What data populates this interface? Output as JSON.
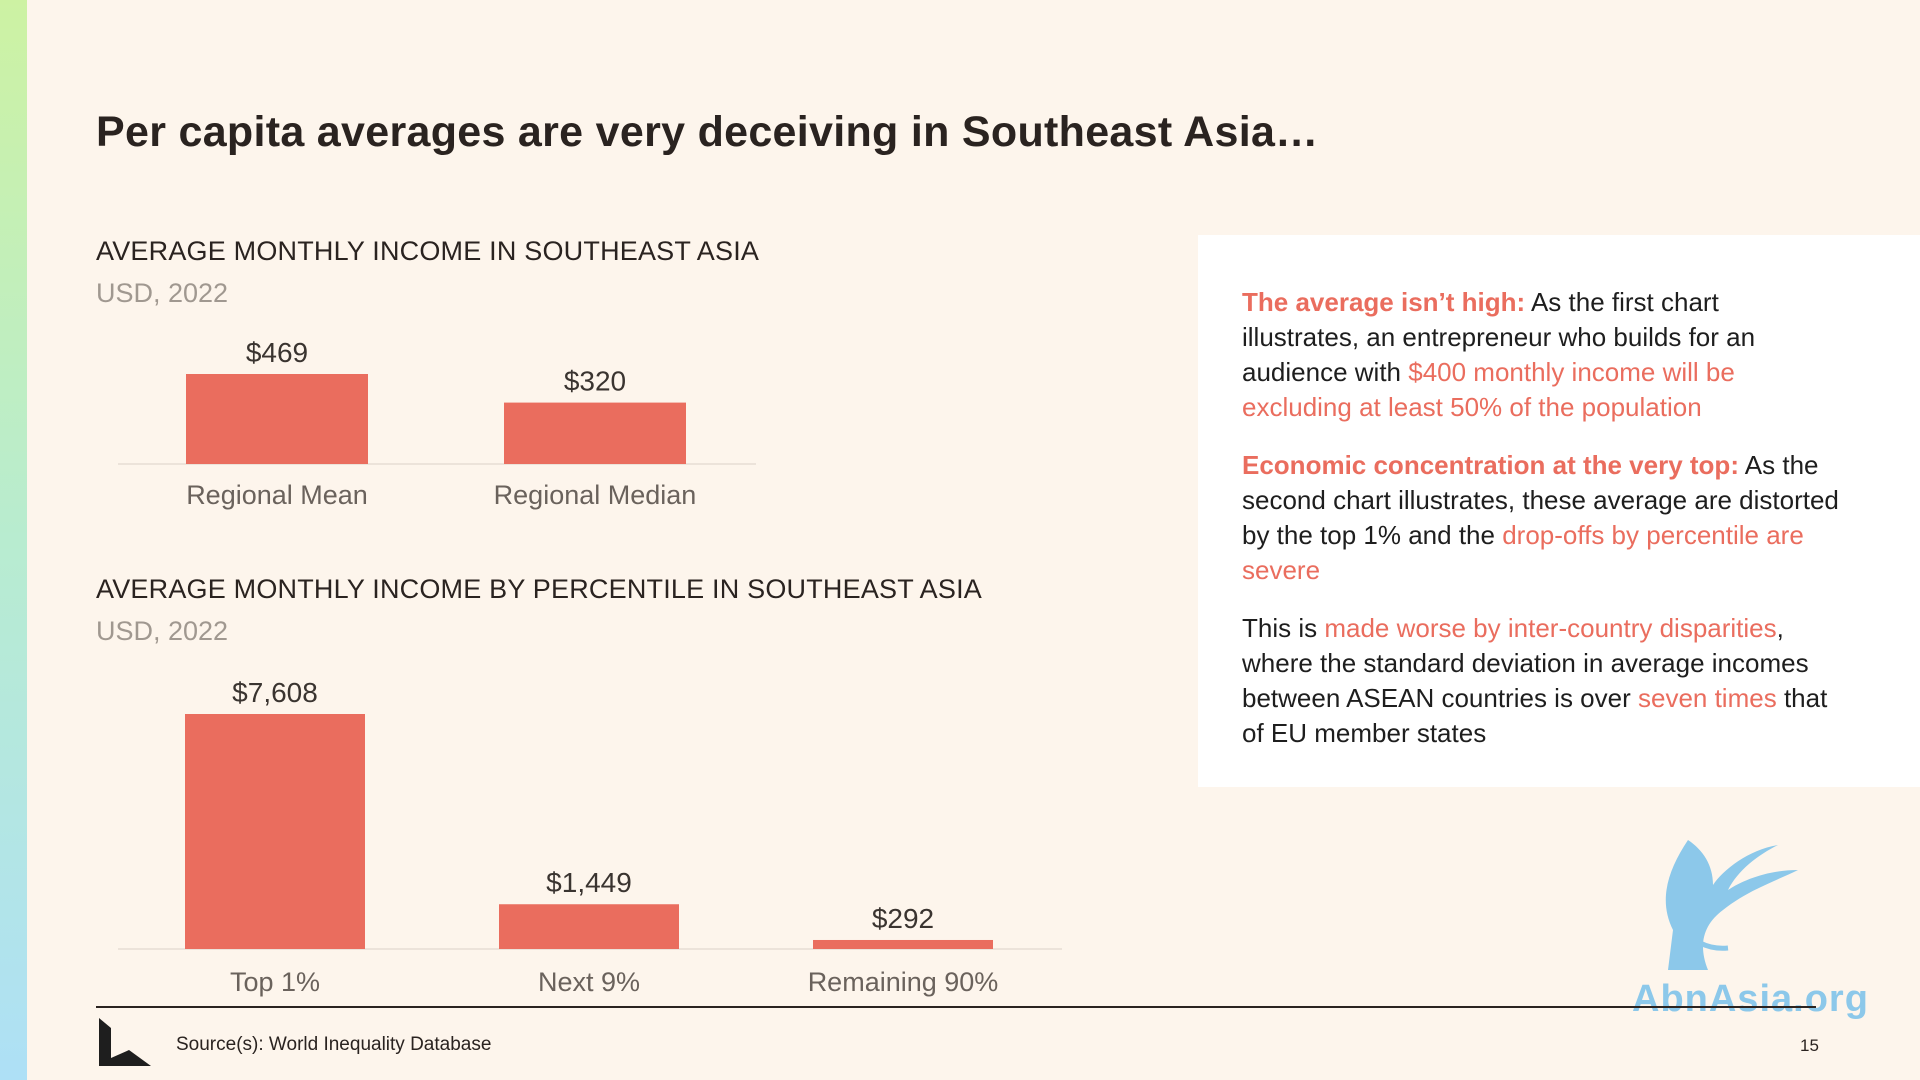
{
  "slide": {
    "title": "Per capita averages are very deceiving in Southeast Asia…",
    "page_number": "15",
    "source": "Source(s): World Inequality Database"
  },
  "colors": {
    "bar": "#ea6d5e",
    "highlight": "#ea6d5e",
    "background": "#fdf5ec"
  },
  "chart_data": [
    {
      "type": "bar",
      "title": "AVERAGE MONTHLY INCOME IN SOUTHEAST ASIA",
      "subtitle": "USD, 2022",
      "categories": [
        "Regional Mean",
        "Regional Median"
      ],
      "values": [
        469,
        320
      ],
      "value_labels": [
        "$469",
        "$320"
      ],
      "ylim": [
        0,
        469
      ],
      "grid": false
    },
    {
      "type": "bar",
      "title": "AVERAGE MONTHLY INCOME BY PERCENTILE IN SOUTHEAST ASIA",
      "subtitle": "USD, 2022",
      "categories": [
        "Top 1%",
        "Next 9%",
        "Remaining 90%"
      ],
      "values": [
        7608,
        1449,
        292
      ],
      "value_labels": [
        "$7,608",
        "$1,449",
        "$292"
      ],
      "ylim": [
        0,
        7608
      ],
      "grid": false
    }
  ],
  "notes": {
    "p1": {
      "lead": "The average isn’t high:",
      "text1": " As the first chart illustrates, an entrepreneur who builds for an audience with ",
      "hl1": "$400 monthly income will be excluding at least 50% of the population"
    },
    "p2": {
      "lead": "Economic concentration at the very top:",
      "text1": " As the second chart illustrates, these average are distorted by the top 1% and the ",
      "hl1": "drop-offs by percentile are severe"
    },
    "p3": {
      "text1": "This is ",
      "hl1": "made worse by inter-country disparities",
      "text2": ", where the standard deviation in average incomes between ASEAN countries is over ",
      "hl2": "seven times",
      "text3": " that of EU member states"
    }
  },
  "watermark": {
    "text": "AbnAsia.org",
    "icon": "eagle-icon"
  }
}
